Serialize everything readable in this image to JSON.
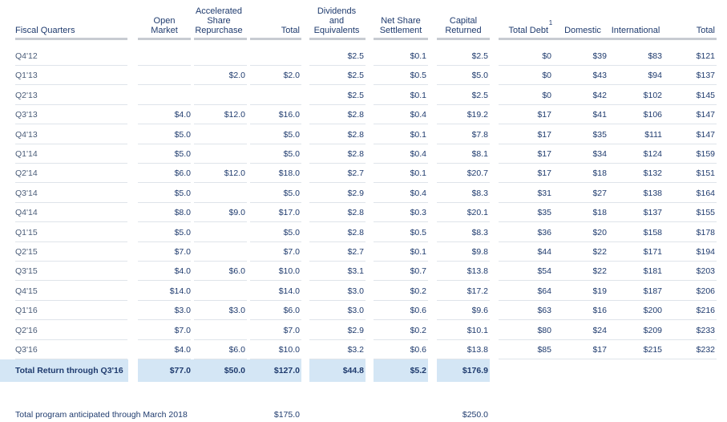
{
  "headers": {
    "fiscal_quarters": "Fiscal Quarters",
    "open_market": "Open\nMarket",
    "accelerated": "Accelerated\nShare\nRepurchase",
    "total": "Total",
    "dividends": "Dividends\nand\nEquivalents",
    "net_share": "Net Share\nSettlement",
    "capital_returned": "Capital\nReturned",
    "total_debt": "Total Debt",
    "footnote": "1",
    "domestic": "Domestic",
    "international": "International",
    "total2": "Total"
  },
  "rows": [
    {
      "quarter": "Q4'12",
      "open": "",
      "asr": "",
      "total": "",
      "div": "$2.5",
      "net": "$0.1",
      "cap": "$2.5",
      "debt": "$0",
      "dom": "$39",
      "intl": "$83",
      "tot": "$121"
    },
    {
      "quarter": "Q1'13",
      "open": "",
      "asr": "$2.0",
      "total": "$2.0",
      "div": "$2.5",
      "net": "$0.5",
      "cap": "$5.0",
      "debt": "$0",
      "dom": "$43",
      "intl": "$94",
      "tot": "$137"
    },
    {
      "quarter": "Q2'13",
      "open": "",
      "asr": "",
      "total": "",
      "div": "$2.5",
      "net": "$0.1",
      "cap": "$2.5",
      "debt": "$0",
      "dom": "$42",
      "intl": "$102",
      "tot": "$145"
    },
    {
      "quarter": "Q3'13",
      "open": "$4.0",
      "asr": "$12.0",
      "total": "$16.0",
      "div": "$2.8",
      "net": "$0.4",
      "cap": "$19.2",
      "debt": "$17",
      "dom": "$41",
      "intl": "$106",
      "tot": "$147"
    },
    {
      "quarter": "Q4'13",
      "open": "$5.0",
      "asr": "",
      "total": "$5.0",
      "div": "$2.8",
      "net": "$0.1",
      "cap": "$7.8",
      "debt": "$17",
      "dom": "$35",
      "intl": "$111",
      "tot": "$147"
    },
    {
      "quarter": "Q1'14",
      "open": "$5.0",
      "asr": "",
      "total": "$5.0",
      "div": "$2.8",
      "net": "$0.4",
      "cap": "$8.1",
      "debt": "$17",
      "dom": "$34",
      "intl": "$124",
      "tot": "$159"
    },
    {
      "quarter": "Q2'14",
      "open": "$6.0",
      "asr": "$12.0",
      "total": "$18.0",
      "div": "$2.7",
      "net": "$0.1",
      "cap": "$20.7",
      "debt": "$17",
      "dom": "$18",
      "intl": "$132",
      "tot": "$151"
    },
    {
      "quarter": "Q3'14",
      "open": "$5.0",
      "asr": "",
      "total": "$5.0",
      "div": "$2.9",
      "net": "$0.4",
      "cap": "$8.3",
      "debt": "$31",
      "dom": "$27",
      "intl": "$138",
      "tot": "$164"
    },
    {
      "quarter": "Q4'14",
      "open": "$8.0",
      "asr": "$9.0",
      "total": "$17.0",
      "div": "$2.8",
      "net": "$0.3",
      "cap": "$20.1",
      "debt": "$35",
      "dom": "$18",
      "intl": "$137",
      "tot": "$155"
    },
    {
      "quarter": "Q1'15",
      "open": "$5.0",
      "asr": "",
      "total": "$5.0",
      "div": "$2.8",
      "net": "$0.5",
      "cap": "$8.3",
      "debt": "$36",
      "dom": "$20",
      "intl": "$158",
      "tot": "$178"
    },
    {
      "quarter": "Q2'15",
      "open": "$7.0",
      "asr": "",
      "total": "$7.0",
      "div": "$2.7",
      "net": "$0.1",
      "cap": "$9.8",
      "debt": "$44",
      "dom": "$22",
      "intl": "$171",
      "tot": "$194"
    },
    {
      "quarter": "Q3'15",
      "open": "$4.0",
      "asr": "$6.0",
      "total": "$10.0",
      "div": "$3.1",
      "net": "$0.7",
      "cap": "$13.8",
      "debt": "$54",
      "dom": "$22",
      "intl": "$181",
      "tot": "$203"
    },
    {
      "quarter": "Q4'15",
      "open": "$14.0",
      "asr": "",
      "total": "$14.0",
      "div": "$3.0",
      "net": "$0.2",
      "cap": "$17.2",
      "debt": "$64",
      "dom": "$19",
      "intl": "$187",
      "tot": "$206"
    },
    {
      "quarter": "Q1'16",
      "open": "$3.0",
      "asr": "$3.0",
      "total": "$6.0",
      "div": "$3.0",
      "net": "$0.6",
      "cap": "$9.6",
      "debt": "$63",
      "dom": "$16",
      "intl": "$200",
      "tot": "$216"
    },
    {
      "quarter": "Q2'16",
      "open": "$7.0",
      "asr": "",
      "total": "$7.0",
      "div": "$2.9",
      "net": "$0.2",
      "cap": "$10.1",
      "debt": "$80",
      "dom": "$24",
      "intl": "$209",
      "tot": "$233"
    },
    {
      "quarter": "Q3'16",
      "open": "$4.0",
      "asr": "$6.0",
      "total": "$10.0",
      "div": "$3.2",
      "net": "$0.6",
      "cap": "$13.8",
      "debt": "$85",
      "dom": "$17",
      "intl": "$215",
      "tot": "$232"
    }
  ],
  "total_row": {
    "label": "Total Return through Q3'16",
    "open": "$77.0",
    "asr": "$50.0",
    "total": "$127.0",
    "div": "$44.8",
    "net": "$5.2",
    "cap": "$176.9"
  },
  "footer_row": {
    "label": "Total program anticipated through March 2018",
    "total": "$175.0",
    "cap": "$250.0"
  }
}
